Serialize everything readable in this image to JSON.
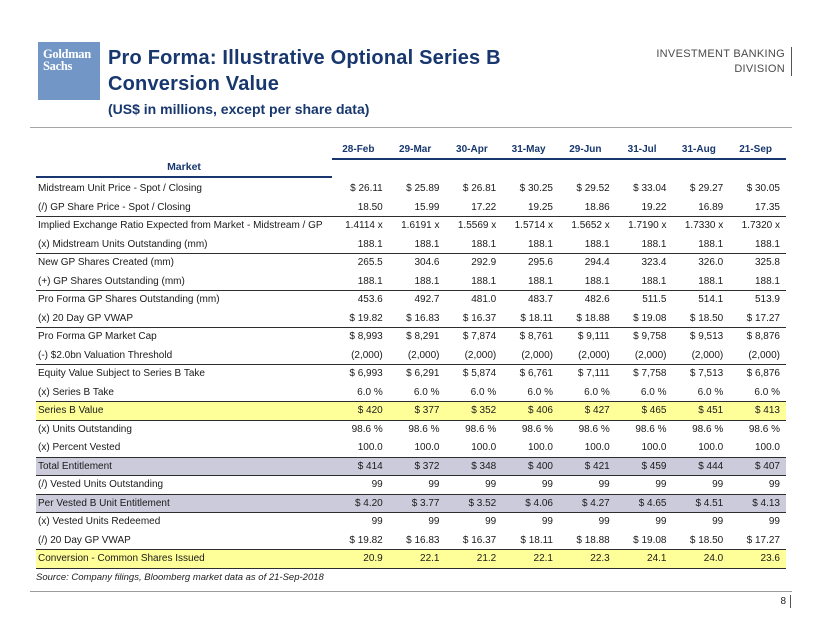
{
  "header": {
    "logo_line1": "Goldman",
    "logo_line2": "Sachs",
    "title_line1": "Pro Forma: Illustrative Optional Series B",
    "title_line2": "Conversion Value",
    "subtitle": "(US$ in millions, except per share data)",
    "division_line1": "INVESTMENT BANKING",
    "division_line2": "DIVISION"
  },
  "colors": {
    "navy": "#17376e",
    "logo_blue": "#7296c5",
    "highlight_yellow": "#ffff99",
    "highlight_lavender": "#cbcbdb",
    "division_gray": "#4a4a4a"
  },
  "table": {
    "label_header": "Market",
    "columns": [
      "28-Feb",
      "29-Mar",
      "30-Apr",
      "31-May",
      "29-Jun",
      "31-Jul",
      "31-Aug",
      "21-Sep"
    ],
    "rows": [
      {
        "label": "Midstream Unit Price - Spot / Closing",
        "values": [
          "$ 26.11",
          "$ 25.89",
          "$ 26.81",
          "$ 30.25",
          "$ 29.52",
          "$ 33.04",
          "$ 29.27",
          "$ 30.05"
        ],
        "highlight": null,
        "rule_below": false
      },
      {
        "label": "(/) GP Share Price - Spot / Closing",
        "values": [
          "18.50",
          "15.99",
          "17.22",
          "19.25",
          "18.86",
          "19.22",
          "16.89",
          "17.35"
        ],
        "highlight": null,
        "rule_below": true
      },
      {
        "label": "Implied Exchange Ratio Expected from Market - Midstream / GP",
        "values": [
          "1.4114 x",
          "1.6191 x",
          "1.5569 x",
          "1.5714 x",
          "1.5652 x",
          "1.7190 x",
          "1.7330 x",
          "1.7320 x"
        ],
        "highlight": null,
        "rule_below": false
      },
      {
        "label": "(x) Midstream Units Outstanding (mm)",
        "values": [
          "188.1",
          "188.1",
          "188.1",
          "188.1",
          "188.1",
          "188.1",
          "188.1",
          "188.1"
        ],
        "highlight": null,
        "rule_below": true
      },
      {
        "label": "New GP Shares Created (mm)",
        "values": [
          "265.5",
          "304.6",
          "292.9",
          "295.6",
          "294.4",
          "323.4",
          "326.0",
          "325.8"
        ],
        "highlight": null,
        "rule_below": false
      },
      {
        "label": "(+) GP Shares Outstanding (mm)",
        "values": [
          "188.1",
          "188.1",
          "188.1",
          "188.1",
          "188.1",
          "188.1",
          "188.1",
          "188.1"
        ],
        "highlight": null,
        "rule_below": true
      },
      {
        "label": "Pro Forma GP Shares Outstanding (mm)",
        "values": [
          "453.6",
          "492.7",
          "481.0",
          "483.7",
          "482.6",
          "511.5",
          "514.1",
          "513.9"
        ],
        "highlight": null,
        "rule_below": false
      },
      {
        "label": "(x) 20 Day GP VWAP",
        "values": [
          "$ 19.82",
          "$ 16.83",
          "$ 16.37",
          "$ 18.11",
          "$ 18.88",
          "$ 19.08",
          "$ 18.50",
          "$ 17.27"
        ],
        "highlight": null,
        "rule_below": true
      },
      {
        "label": "Pro Forma GP Market Cap",
        "values": [
          "$ 8,993",
          "$ 8,291",
          "$ 7,874",
          "$ 8,761",
          "$ 9,111",
          "$ 9,758",
          "$ 9,513",
          "$ 8,876"
        ],
        "highlight": null,
        "rule_below": false
      },
      {
        "label": "(-) $2.0bn Valuation Threshold",
        "values": [
          "(2,000)",
          "(2,000)",
          "(2,000)",
          "(2,000)",
          "(2,000)",
          "(2,000)",
          "(2,000)",
          "(2,000)"
        ],
        "highlight": null,
        "rule_below": true
      },
      {
        "label": "Equity Value Subject to Series B Take",
        "values": [
          "$ 6,993",
          "$ 6,291",
          "$ 5,874",
          "$ 6,761",
          "$ 7,111",
          "$ 7,758",
          "$ 7,513",
          "$ 6,876"
        ],
        "highlight": null,
        "rule_below": false
      },
      {
        "label": "(x) Series B Take",
        "values": [
          "6.0 %",
          "6.0 %",
          "6.0 %",
          "6.0 %",
          "6.0 %",
          "6.0 %",
          "6.0 %",
          "6.0 %"
        ],
        "highlight": null,
        "rule_below": true
      },
      {
        "label": "Series B Value",
        "values": [
          "$ 420",
          "$ 377",
          "$ 352",
          "$ 406",
          "$ 427",
          "$ 465",
          "$ 451",
          "$ 413"
        ],
        "highlight": "yellow",
        "rule_below": true
      },
      {
        "label": "(x) Units Outstanding",
        "values": [
          "98.6 %",
          "98.6 %",
          "98.6 %",
          "98.6 %",
          "98.6 %",
          "98.6 %",
          "98.6 %",
          "98.6 %"
        ],
        "highlight": null,
        "rule_below": false
      },
      {
        "label": "(x) Percent Vested",
        "values": [
          "100.0",
          "100.0",
          "100.0",
          "100.0",
          "100.0",
          "100.0",
          "100.0",
          "100.0"
        ],
        "highlight": null,
        "rule_below": true
      },
      {
        "label": "Total Entitlement",
        "values": [
          "$ 414",
          "$ 372",
          "$ 348",
          "$ 400",
          "$ 421",
          "$ 459",
          "$ 444",
          "$ 407"
        ],
        "highlight": "lavender",
        "rule_below": true
      },
      {
        "label": "(/) Vested Units Outstanding",
        "values": [
          "99",
          "99",
          "99",
          "99",
          "99",
          "99",
          "99",
          "99"
        ],
        "highlight": null,
        "rule_below": true
      },
      {
        "label": "Per Vested B Unit Entitlement",
        "values": [
          "$ 4.20",
          "$ 3.77",
          "$ 3.52",
          "$ 4.06",
          "$ 4.27",
          "$ 4.65",
          "$ 4.51",
          "$ 4.13"
        ],
        "highlight": "lavender",
        "rule_below": true
      },
      {
        "label": "(x) Vested Units Redeemed",
        "values": [
          "99",
          "99",
          "99",
          "99",
          "99",
          "99",
          "99",
          "99"
        ],
        "highlight": null,
        "rule_below": false
      },
      {
        "label": "(/) 20 Day GP VWAP",
        "values": [
          "$ 19.82",
          "$ 16.83",
          "$ 16.37",
          "$ 18.11",
          "$ 18.88",
          "$ 19.08",
          "$ 18.50",
          "$ 17.27"
        ],
        "highlight": null,
        "rule_below": true
      },
      {
        "label": "Conversion - Common Shares Issued",
        "values": [
          "20.9",
          "22.1",
          "21.2",
          "22.1",
          "22.3",
          "24.1",
          "24.0",
          "23.6"
        ],
        "highlight": "yellow",
        "rule_below": true
      }
    ]
  },
  "footer": {
    "source": "Source: Company filings, Bloomberg market data as of 21-Sep-2018",
    "page_number": "8"
  }
}
